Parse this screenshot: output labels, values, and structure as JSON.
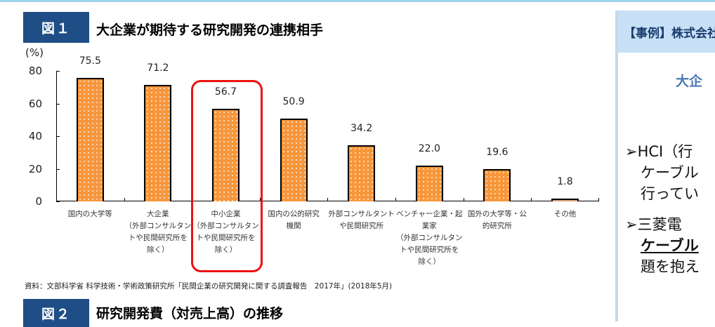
{
  "figure1": {
    "label": "図１",
    "title": "大企業が期待する研究開発の連携相手",
    "unit": "(%)",
    "source": "資料：文部科学省 科学技術・学術政策研究所「民間企業の研究開発に関する調査報告　2017年」(2018年5月)"
  },
  "figure2": {
    "label": "図２",
    "title": "研究開発費（対売上高）の推移"
  },
  "right_panel": {
    "header": "【事例】株式会社",
    "subtitle": "大企",
    "bullets": [
      {
        "lines": [
          "➢HCI（行",
          "ケーブル",
          "行ってい"
        ]
      },
      {
        "lines": [
          "➢三菱電",
          "ケーブル",
          "題を抱え"
        ]
      }
    ]
  },
  "colors": {
    "bar_fill": "#f7963b",
    "highlight": "#ee1111",
    "figure_label_bg": "#1f4e86",
    "panel_header_bg": "#c8e0f6"
  },
  "chart_data": {
    "type": "bar",
    "title": "大企業が期待する研究開発の連携相手",
    "xlabel": "",
    "ylabel": "(%)",
    "ylim": [
      0,
      80
    ],
    "yticks": [
      "0",
      "20",
      "40",
      "60",
      "80"
    ],
    "grid": false,
    "legend": null,
    "categories": [
      "国内の大学等",
      "大企業（外部コンサルタントや民間研究所を除く）",
      "中小企業（外部コンサルタントや民間研究所を除く）",
      "国内の公的研究機関",
      "外部コンサルタントや民間研究所",
      "ベンチャー企業・起業家（外部コンサルタントや民間研究所を除く）",
      "国外の大学等・公的研究所",
      "その他"
    ],
    "category_lines": [
      [
        "国内の大学等"
      ],
      [
        "大企業",
        "（外部コンサルタン",
        "トや民間研究所を",
        "除く）"
      ],
      [
        "中小企業",
        "（外部コンサルタン",
        "トや民間研究所を",
        "除く）"
      ],
      [
        "国内の公的研究",
        "機関"
      ],
      [
        "外部コンサルタント",
        "や民間研究所"
      ],
      [
        "ベンチャー企業・起",
        "業家",
        "（外部コンサルタン",
        "トや民間研究所を",
        "除く）"
      ],
      [
        "国外の大学等・公",
        "的研究所"
      ],
      [
        "その他"
      ]
    ],
    "values": [
      75.5,
      71.2,
      56.7,
      50.9,
      34.2,
      22.0,
      19.6,
      1.8
    ],
    "value_labels": [
      "75.5",
      "71.2",
      "56.7",
      "50.9",
      "34.2",
      "22.0",
      "19.6",
      "1.8"
    ],
    "highlighted_category_index": 2
  }
}
